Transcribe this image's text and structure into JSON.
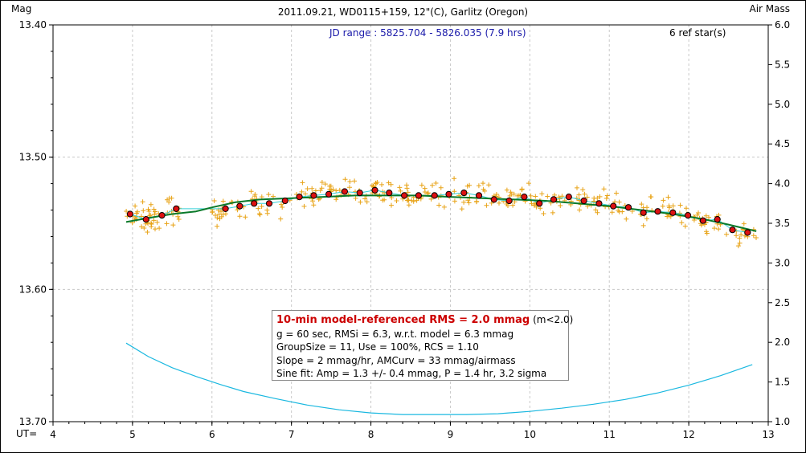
{
  "header": {
    "title": "2011.09.21, WD0115+159, 12\"(C), Garlitz (Oregon)",
    "left_axis_label": "Mag",
    "right_axis_label": "Air Mass",
    "x_prefix": "UT=",
    "jd_range": "JD range : 5825.704 - 5826.035 (7.9 hrs)",
    "ref_stars": "6 ref star(s)"
  },
  "stats": {
    "headline": "10-min model-referenced RMS = 2.0 mmag",
    "headline_suffix": "(m<2.0)",
    "line2": "g = 60 sec, RMSi = 6.3, w.r.t. model = 6.3 mmag",
    "line3": "GroupSize = 11, Use = 100%, RCS = 1.10",
    "line4": "Slope = 2 mmag/hr, AMCurv = 33 mmag/airmass",
    "line5": "Sine fit: Amp = 1.3 +/- 0.4 mmag, P = 1.4 hr, 3.2 sigma"
  },
  "colors": {
    "raw_points": "#e8a317",
    "binned_points": "#dd1111",
    "model_line": "#0a7a2a",
    "trace_line": "#35d0d8",
    "airmass_line": "#1ab8e0",
    "jd_text": "#1a1aaa"
  },
  "chart_data": {
    "type": "scatter",
    "title": "2011.09.21, WD0115+159, 12\"(C), Garlitz (Oregon)",
    "xlabel": "UT=",
    "ylabel": "Mag",
    "y2label": "Air Mass",
    "xlim": [
      4,
      13
    ],
    "ylim": [
      13.4,
      13.7
    ],
    "y_inverted": true,
    "y2lim": [
      1.0,
      6.0
    ],
    "x_ticks": [
      "4",
      "5",
      "6",
      "7",
      "8",
      "9",
      "10",
      "11",
      "12",
      "13"
    ],
    "y_ticks": [
      "13.40",
      "13.50",
      "13.60",
      "13.70"
    ],
    "y2_ticks": [
      "1.0",
      "1.5",
      "2.0",
      "2.5",
      "3.0",
      "3.5",
      "4.0",
      "4.5",
      "5.0",
      "5.5",
      "6.0"
    ],
    "grid": true,
    "series": [
      {
        "kind": "binned",
        "x": [
          4.97,
          5.17,
          5.37,
          5.55,
          6.17,
          6.35,
          6.53,
          6.72,
          6.92,
          7.1,
          7.28,
          7.47,
          7.67,
          7.86,
          8.05,
          8.23,
          8.42,
          8.6,
          8.8,
          8.98,
          9.17,
          9.36,
          9.55,
          9.74,
          9.93,
          10.12,
          10.3,
          10.49,
          10.68,
          10.87,
          11.05,
          11.24,
          11.43,
          11.61,
          11.8,
          11.99,
          12.18,
          12.36,
          12.55,
          12.74
        ],
        "y": [
          13.543,
          13.547,
          13.544,
          13.539,
          13.539,
          13.537,
          13.535,
          13.535,
          13.533,
          13.53,
          13.529,
          13.528,
          13.526,
          13.527,
          13.525,
          13.527,
          13.529,
          13.529,
          13.529,
          13.528,
          13.527,
          13.529,
          13.532,
          13.533,
          13.53,
          13.535,
          13.532,
          13.53,
          13.533,
          13.535,
          13.537,
          13.538,
          13.542,
          13.541,
          13.542,
          13.544,
          13.548,
          13.547,
          13.555,
          13.557
        ]
      },
      {
        "kind": "model",
        "x": [
          4.92,
          5.2,
          5.5,
          5.8,
          6.0,
          6.3,
          6.6,
          7.0,
          7.4,
          7.8,
          8.2,
          8.6,
          9.0,
          9.4,
          9.8,
          10.2,
          10.6,
          11.0,
          11.4,
          11.8,
          12.2,
          12.5,
          12.85
        ],
        "y": [
          13.549,
          13.546,
          13.543,
          13.541,
          13.538,
          13.534,
          13.532,
          13.531,
          13.53,
          13.529,
          13.529,
          13.529,
          13.53,
          13.531,
          13.532,
          13.533,
          13.535,
          13.537,
          13.54,
          13.543,
          13.547,
          13.551,
          13.556
        ]
      },
      {
        "kind": "airmass",
        "axis": "right",
        "x": [
          4.92,
          5.2,
          5.5,
          5.8,
          6.1,
          6.4,
          6.8,
          7.2,
          7.6,
          8.0,
          8.4,
          8.8,
          9.2,
          9.6,
          10.0,
          10.4,
          10.8,
          11.2,
          11.6,
          12.0,
          12.4,
          12.8
        ],
        "y": [
          1.99,
          1.82,
          1.68,
          1.57,
          1.47,
          1.38,
          1.29,
          1.21,
          1.15,
          1.11,
          1.09,
          1.09,
          1.09,
          1.1,
          1.13,
          1.17,
          1.22,
          1.28,
          1.36,
          1.46,
          1.58,
          1.72
        ]
      }
    ]
  }
}
